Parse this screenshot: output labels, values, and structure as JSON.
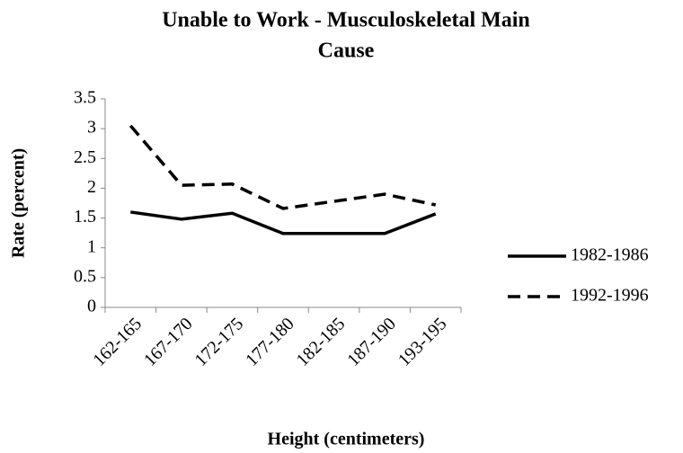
{
  "chart_data": {
    "type": "line",
    "title": [
      "Unable to Work  - Musculoskeletal Main",
      "Cause"
    ],
    "x_label": "Height (centimeters)",
    "y_label": "Rate (percent)",
    "categories": [
      "162-165",
      "167-170",
      "172-175",
      "177-180",
      "182-185",
      "187-190",
      "193-195"
    ],
    "series": [
      {
        "name": "1982-1986",
        "color": "#000000",
        "line_style": "solid",
        "values": [
          1.6,
          1.48,
          1.58,
          1.24,
          1.24,
          1.24,
          1.57
        ]
      },
      {
        "name": "1992-1996",
        "color": "#000000",
        "line_style": "dashed",
        "values": [
          3.05,
          2.05,
          2.07,
          1.66,
          1.78,
          1.9,
          1.72
        ]
      }
    ],
    "ylim": [
      0,
      3.5
    ],
    "yticks": [
      0,
      0.5,
      1,
      1.5,
      2,
      2.5,
      3,
      3.5
    ],
    "grid": false,
    "legend": "right"
  }
}
